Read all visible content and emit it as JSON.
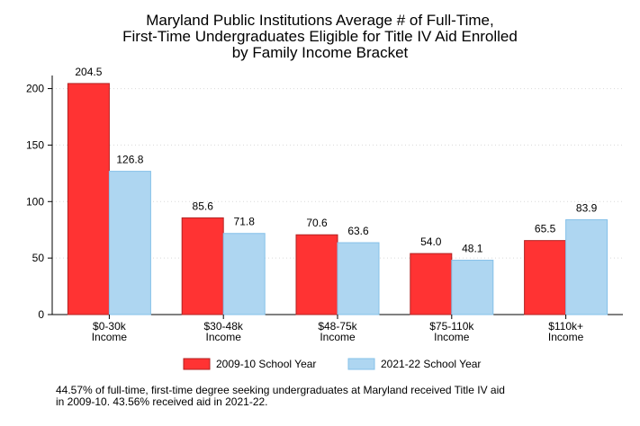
{
  "title_lines": [
    "Maryland Public Institutions Average # of Full-Time,",
    "First-Time Undergraduates Eligible for Title IV Aid Enrolled",
    "by Family Income Bracket"
  ],
  "note_lines": [
    "44.57% of full-time, first-time degree seeking undergraduates at Maryland received Title IV aid",
    "in 2009-10. 43.56% received aid in 2021-22."
  ],
  "colors": {
    "series_2009": "#ff3333",
    "series_2009_stroke": "#b22222",
    "series_2021": "#aed6f1",
    "series_2021_stroke": "#85c1e9",
    "grid": "#d9d9d9",
    "axis": "#000000"
  },
  "chart_data": {
    "type": "bar",
    "title": "Maryland Public Institutions Average # of Full-Time, First-Time Undergraduates Eligible for Title IV Aid Enrolled by Family Income Bracket",
    "categories": [
      [
        "$0-30k",
        "Income"
      ],
      [
        "$30-48k",
        "Income"
      ],
      [
        "$48-75k",
        "Income"
      ],
      [
        "$75-110k",
        "Income"
      ],
      [
        "$110k+",
        "Income"
      ]
    ],
    "series": [
      {
        "name": "2009-10 School Year",
        "values": [
          204.5,
          85.6,
          70.6,
          54.0,
          65.5
        ],
        "labels": [
          "204.5",
          "85.6",
          "70.6",
          "54.0",
          "65.5"
        ]
      },
      {
        "name": "2021-22 School Year",
        "values": [
          126.8,
          71.8,
          63.6,
          48.1,
          83.9
        ],
        "labels": [
          "126.8",
          "71.8",
          "63.6",
          "48.1",
          "83.9"
        ]
      }
    ],
    "yticks": [
      0,
      50,
      100,
      150,
      200
    ],
    "ylim": [
      0,
      210
    ],
    "grid": "horizontal dotted",
    "legend_position": "bottom"
  }
}
